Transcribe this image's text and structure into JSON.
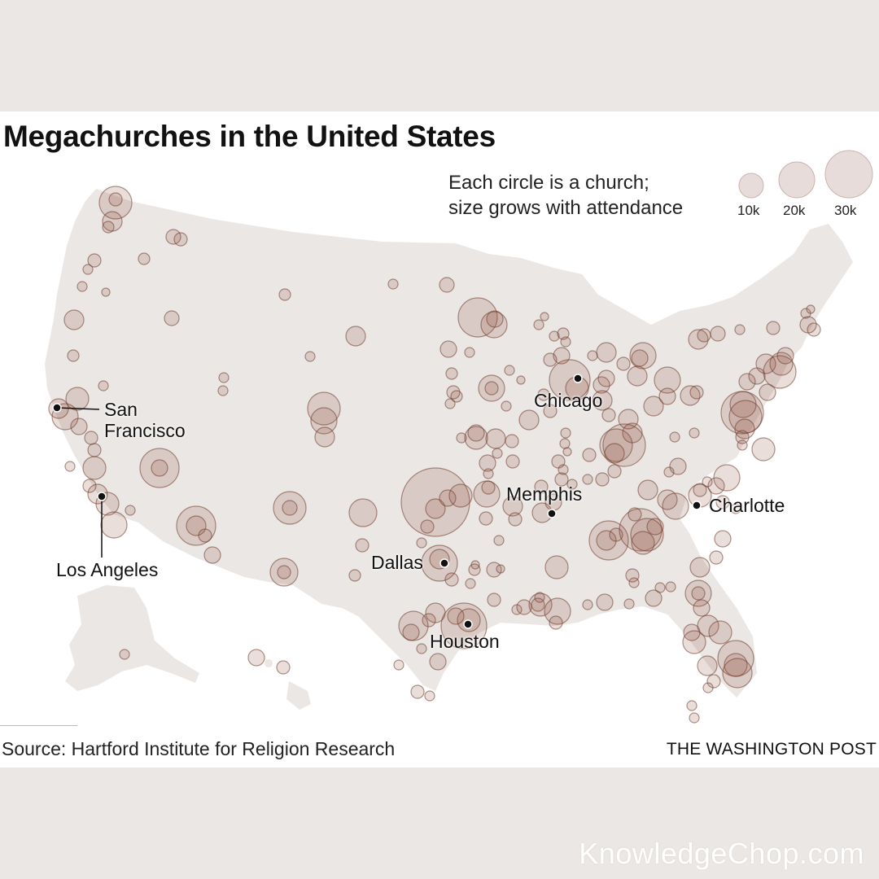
{
  "title": "Megachurches in the United States",
  "legend": {
    "line1": "Each circle is a church;",
    "line2": "size grows with attendance",
    "sizes": [
      "10k",
      "20k",
      "30k"
    ]
  },
  "cities": {
    "san_francisco_1": "San",
    "san_francisco_2": "Francisco",
    "los_angeles": "Los Angeles",
    "chicago": "Chicago",
    "memphis": "Memphis",
    "charlotte": "Charlotte",
    "dallas": "Dallas",
    "houston": "Houston"
  },
  "source": "Source: Hartford Institute for Religion Research",
  "credit": "THE WASHINGTON POST",
  "watermark": "KnowledgeChop.com",
  "colors": {
    "circle_fill": "#8a4a3a",
    "circle_stroke": "#6e3a2c",
    "land": "#ebe7e4",
    "legend_circle": "#e7dcd9"
  }
}
